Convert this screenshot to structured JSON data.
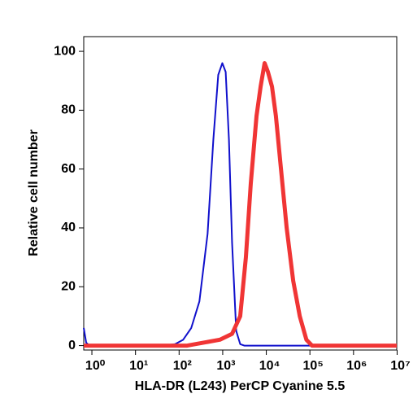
{
  "chart_data": {
    "type": "line",
    "x_label": "HLA-DR (L243) PerCP Cyanine 5.5",
    "y_label": "Relative cell number",
    "x_scale": "log",
    "xlim": [
      0.65,
      9800000
    ],
    "ylim": [
      -1.5,
      105
    ],
    "xticks": [
      {
        "value": 1,
        "label": "10⁰"
      },
      {
        "value": 10,
        "label": "10¹"
      },
      {
        "value": 100,
        "label": "10²"
      },
      {
        "value": 1000,
        "label": "10³"
      },
      {
        "value": 10000,
        "label": "10⁴"
      },
      {
        "value": 100000,
        "label": "10⁵"
      },
      {
        "value": 1000000,
        "label": "10⁶"
      },
      {
        "value": 10000000,
        "label": "10⁷"
      }
    ],
    "yticks": [
      0,
      20,
      40,
      60,
      80,
      100
    ],
    "series": [
      {
        "color": "#1010cc",
        "width": 2,
        "x": [
          0.65,
          0.74,
          0.88,
          42,
          81,
          124,
          190,
          292,
          450,
          610,
          790,
          980,
          1170,
          1390,
          1640,
          2040,
          2520,
          3130,
          9800000
        ],
        "values": [
          6,
          1,
          0,
          0,
          0.5,
          2,
          6,
          15,
          38,
          70,
          92,
          96,
          93,
          70,
          35,
          5,
          0.5,
          0,
          0
        ]
      },
      {
        "color": "#f03535",
        "width": 5,
        "x": [
          0.65,
          153,
          364,
          860,
          1640,
          2520,
          3400,
          4400,
          5960,
          7400,
          9140,
          10900,
          13500,
          16600,
          21700,
          29300,
          41400,
          58500,
          83000,
          112000,
          9800000
        ],
        "values": [
          0,
          0,
          1,
          2,
          4,
          10,
          30,
          55,
          78,
          88,
          96,
          93,
          88,
          78,
          60,
          40,
          22,
          10,
          2,
          0,
          0
        ]
      }
    ]
  }
}
